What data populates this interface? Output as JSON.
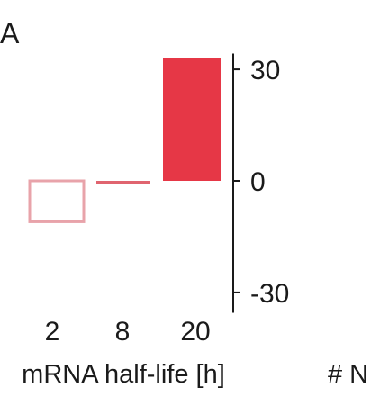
{
  "chart_data": {
    "type": "bar",
    "panel_label": "A",
    "title": "",
    "xlabel": "mRNA half-life [h]",
    "ylabel": "",
    "categories": [
      "2",
      "8",
      "20"
    ],
    "values": [
      -11,
      -0.5,
      33
    ],
    "ylim": [
      -35,
      35
    ],
    "yticks": [
      30,
      0,
      -30
    ],
    "y_axis_side": "right",
    "grid": false,
    "legend": "none",
    "bar_styles": [
      "outline",
      "filled",
      "filled"
    ],
    "colors": {
      "light_bar_stroke": "#e8a3aa",
      "mid_bar": "#e0646f",
      "strong_bar": "#e63746",
      "axis": "#1a1a1a"
    },
    "neighbor_panel_fragment": "# N"
  }
}
